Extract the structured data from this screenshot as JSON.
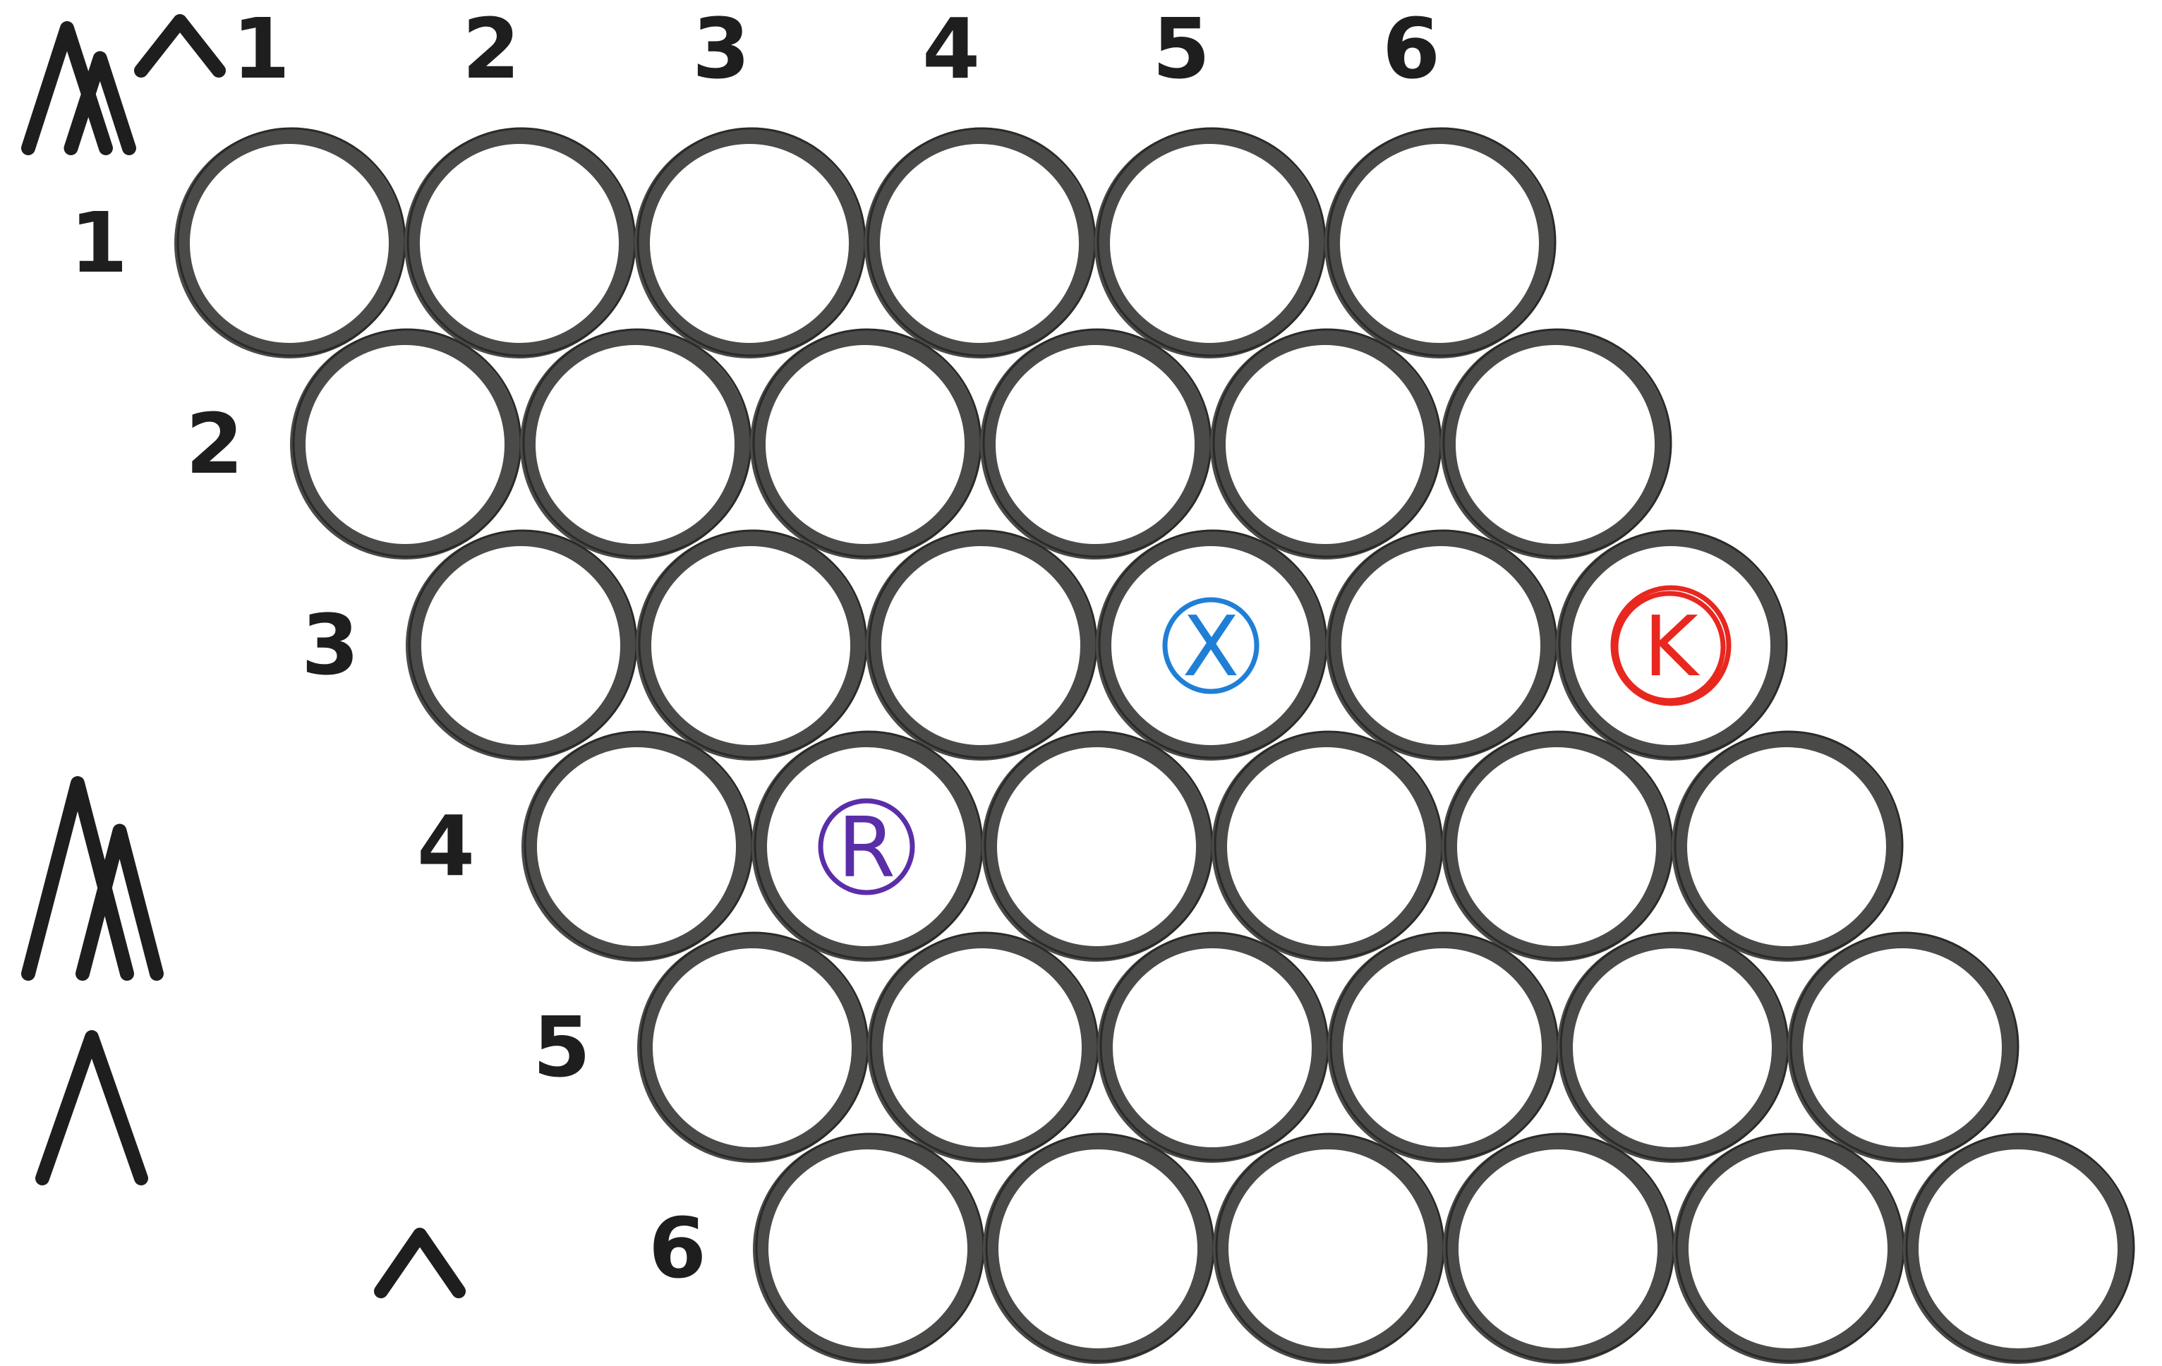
{
  "board": {
    "rows": 6,
    "cols": 6,
    "column_labels": [
      "1",
      "2",
      "3",
      "4",
      "5",
      "6"
    ],
    "row_labels": [
      "1",
      "2",
      "3",
      "4",
      "5",
      "6"
    ]
  },
  "markers": [
    {
      "letter": "X",
      "row": 3,
      "col": 4,
      "color": "#1f7fd6"
    },
    {
      "letter": "K",
      "row": 3,
      "col": 6,
      "color": "#e8271f"
    },
    {
      "letter": "R",
      "row": 4,
      "col": 2,
      "color": "#5a2ea8"
    }
  ],
  "carets": [
    {
      "size": "large",
      "count": 2
    },
    {
      "size": "small",
      "count": 1
    },
    {
      "size": "large",
      "count": 2
    },
    {
      "size": "large",
      "count": 1
    },
    {
      "size": "small",
      "count": 1
    }
  ],
  "colors": {
    "ink": "#4a4a48",
    "background": "#ffffff"
  }
}
